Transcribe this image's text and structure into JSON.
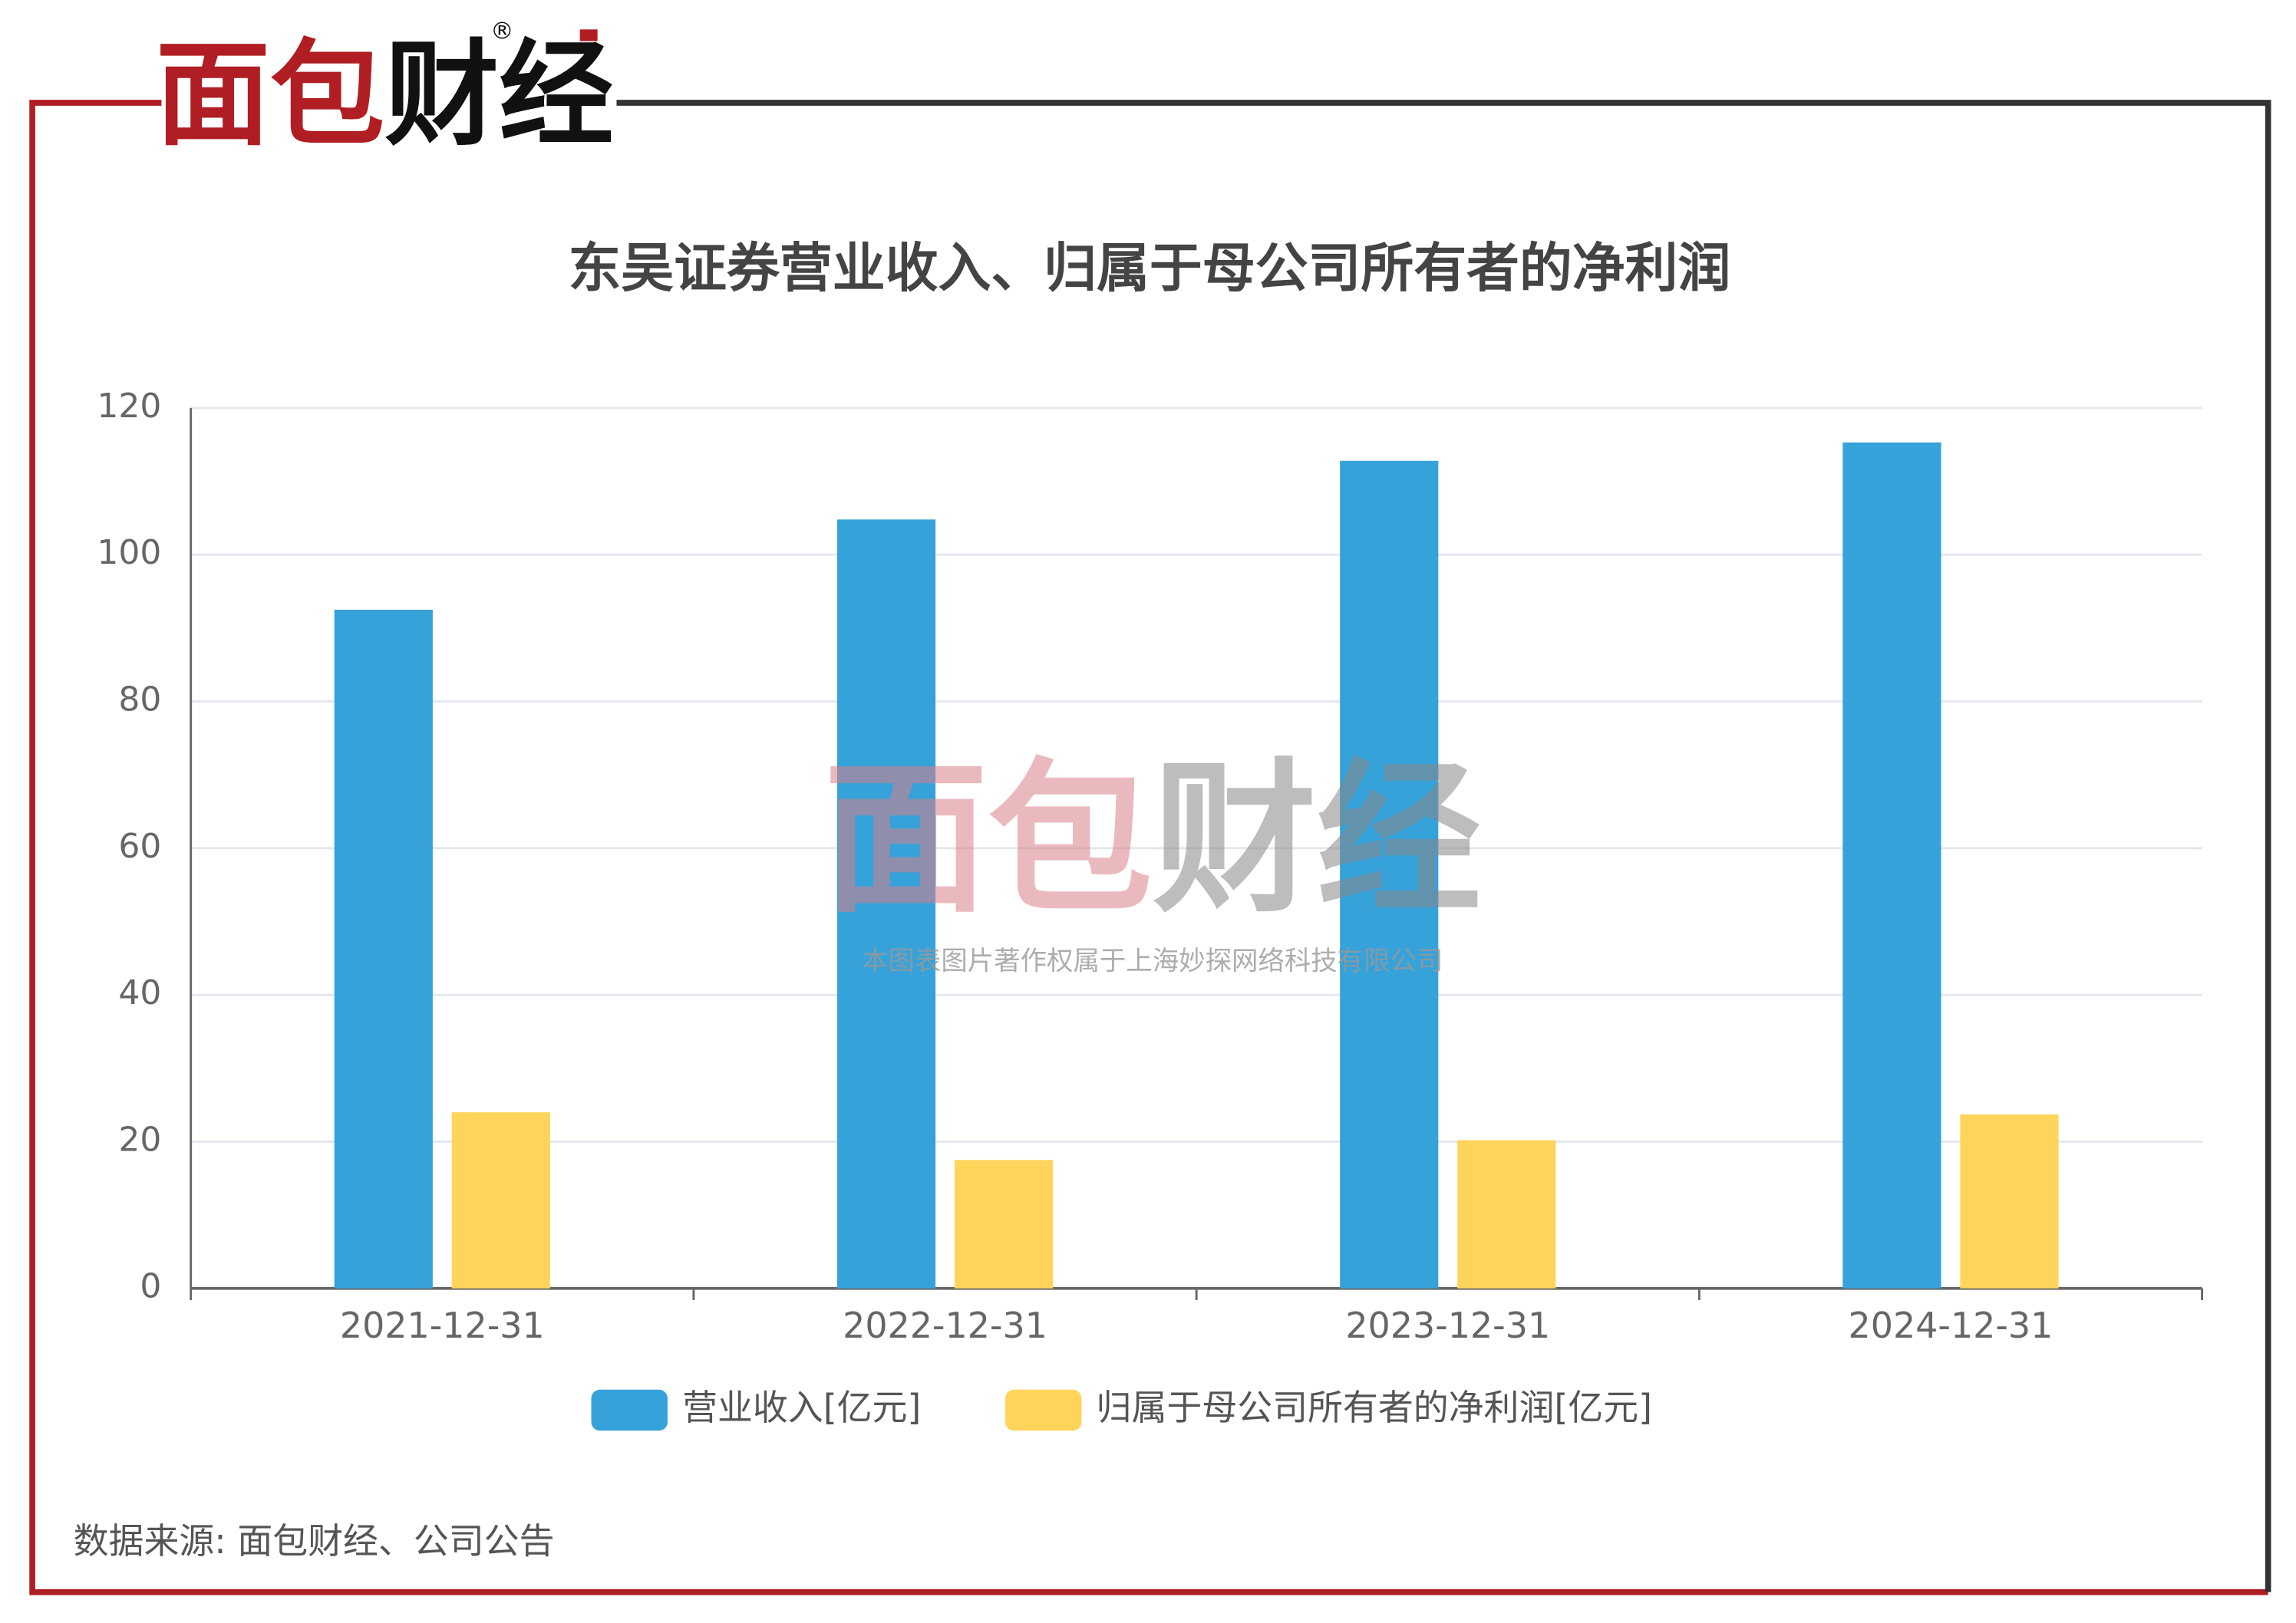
{
  "logo": "面包财经",
  "watermark": {
    "logo": "面包财经",
    "notice": "本图表图片著作权属于上海妙探网络科技有限公司"
  },
  "source": "数据来源: 面包财经、公司公告",
  "chart_data": {
    "type": "bar",
    "title": "东吴证券营业收入、归属于母公司所有者的净利润",
    "categories": [
      "2021-12-31",
      "2022-12-31",
      "2023-12-31",
      "2024-12-31"
    ],
    "series": [
      {
        "name": "营业收入[亿元]",
        "color": "#36a2da",
        "values": [
          92.5,
          104.8,
          112.8,
          115.3
        ]
      },
      {
        "name": "归属于母公司所有者的净利润[亿元]",
        "color": "#fed55a",
        "values": [
          24.0,
          17.5,
          20.2,
          23.7
        ]
      }
    ],
    "ylim": [
      0,
      120
    ],
    "yticks": [
      0,
      20,
      40,
      60,
      80,
      100,
      120
    ],
    "grid": true
  }
}
